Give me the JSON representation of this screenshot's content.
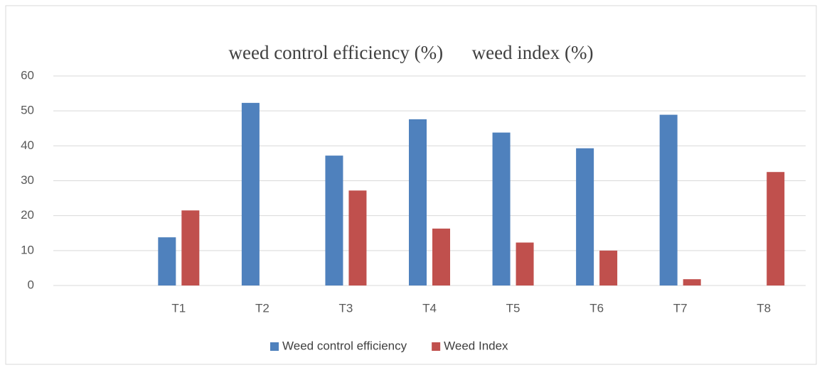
{
  "chart_data": {
    "type": "bar",
    "title": "weed control efficiency (%)      weed index (%)",
    "categories": [
      null,
      "T1",
      "T2",
      "T3",
      "T4",
      "T5",
      "T6",
      "T7",
      "T8"
    ],
    "series": [
      {
        "name": "Weed control efficiency",
        "color": "#4f81bd",
        "values": [
          null,
          13.8,
          52.3,
          37.2,
          47.6,
          43.8,
          39.3,
          48.9,
          0
        ]
      },
      {
        "name": "Weed Index",
        "color": "#c0504d",
        "values": [
          null,
          21.5,
          0,
          27.2,
          16.3,
          12.3,
          10,
          1.8,
          32.5
        ]
      }
    ],
    "ylim": [
      0,
      60
    ],
    "yticks": [
      0,
      10,
      20,
      30,
      40,
      50,
      60
    ],
    "grid": true,
    "legend": "bottom"
  }
}
